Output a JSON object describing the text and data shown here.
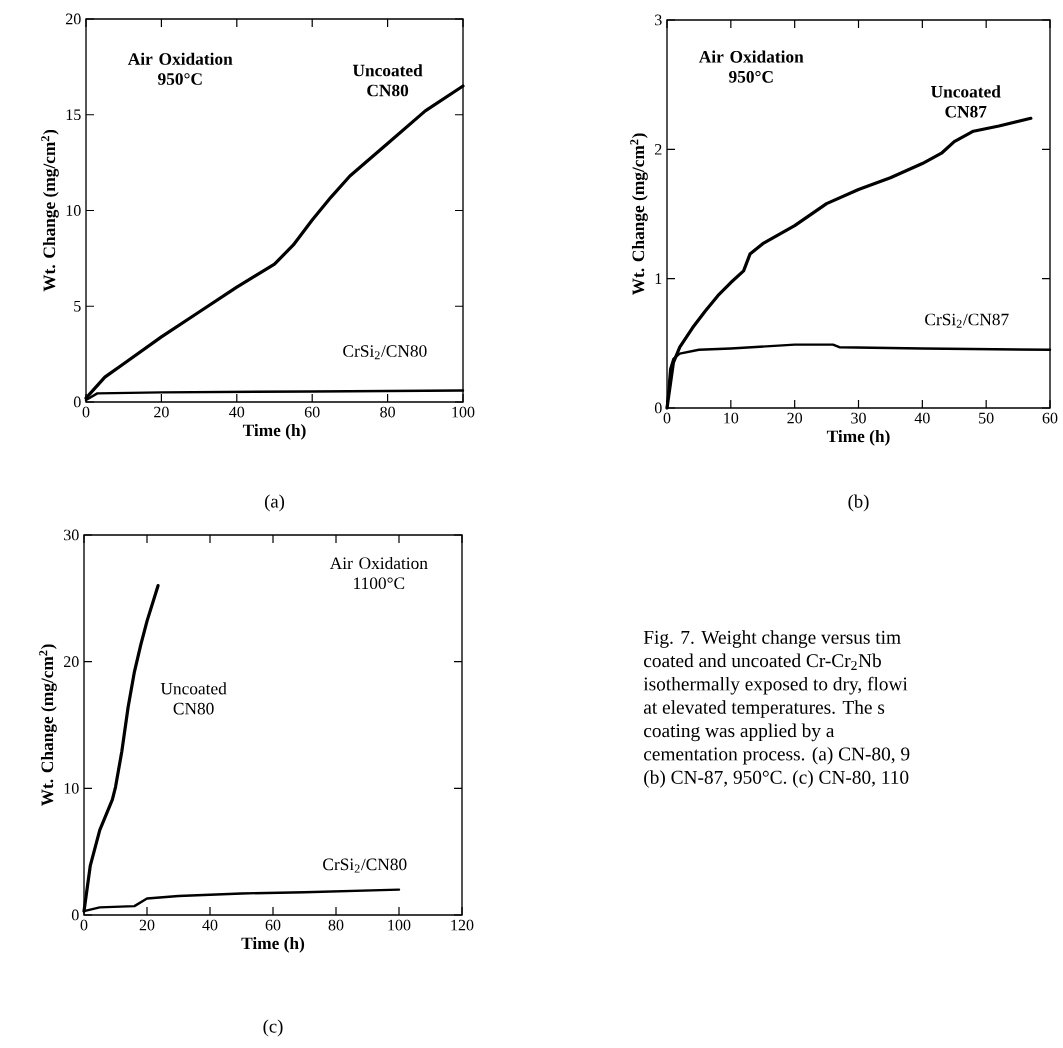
{
  "chart_data": [
    {
      "type": "line",
      "xlabel": "Time (h)",
      "ylabel": "Wt. Change (mg/cm$^{2}$)",
      "xlim": [
        0,
        100
      ],
      "ylim": [
        0,
        20
      ],
      "xticks": [
        0,
        20,
        40,
        60,
        80,
        100
      ],
      "yticks": [
        0,
        5,
        10,
        15,
        20
      ],
      "marker": "none",
      "series": [
        {
          "name": "Uncoated CN80",
          "color": "#000000",
          "x": [
            0,
            5,
            10,
            20,
            30,
            40,
            50,
            55,
            60,
            65,
            70,
            80,
            90,
            100
          ],
          "values": [
            0.2,
            1.3,
            2.0,
            3.4,
            4.7,
            6.0,
            7.2,
            8.2,
            9.5,
            10.7,
            11.8,
            13.5,
            15.2,
            16.5
          ]
        },
        {
          "name": "CrSi$_{2}$/CN80",
          "color": "#000000",
          "x": [
            0,
            3,
            20,
            60,
            100
          ],
          "values": [
            0.1,
            0.45,
            0.5,
            0.55,
            0.6
          ]
        }
      ],
      "annotations": [
        "Air Oxidation 950°C",
        "(a)"
      ]
    },
    {
      "type": "line",
      "xlabel": "Time (h)",
      "ylabel": "Wt. Change (mg/cm$^{2}$)",
      "xlim": [
        0,
        60
      ],
      "ylim": [
        0,
        3
      ],
      "xticks": [
        0,
        10,
        20,
        30,
        40,
        50,
        60
      ],
      "yticks": [
        0,
        1,
        2,
        3
      ],
      "marker": "none",
      "series": [
        {
          "name": "Uncoated CN87",
          "color": "#000000",
          "x": [
            0,
            1,
            2,
            4,
            6,
            8,
            10,
            12,
            13,
            15,
            20,
            25,
            30,
            35,
            40,
            43,
            45,
            48,
            52,
            57
          ],
          "values": [
            0,
            0.35,
            0.47,
            0.62,
            0.75,
            0.87,
            0.97,
            1.06,
            1.19,
            1.27,
            1.41,
            1.58,
            1.69,
            1.78,
            1.89,
            1.97,
            2.06,
            2.14,
            2.18,
            2.24
          ]
        },
        {
          "name": "CrSi$_{2}$/CN87",
          "color": "#000000",
          "x": [
            0,
            0.5,
            1,
            2,
            5,
            10,
            20,
            26,
            27,
            40,
            60
          ],
          "values": [
            0,
            0.3,
            0.38,
            0.42,
            0.45,
            0.46,
            0.49,
            0.49,
            0.47,
            0.46,
            0.45
          ]
        }
      ],
      "annotations": [
        "Air Oxidation 950°C",
        "(b)"
      ]
    },
    {
      "type": "line",
      "xlabel": "Time (h)",
      "ylabel": "Wt. Change (mg/cm$^{2}$)",
      "xlim": [
        0,
        120
      ],
      "ylim": [
        0,
        30
      ],
      "xticks": [
        0,
        20,
        40,
        60,
        80,
        100,
        120
      ],
      "yticks": [
        0,
        10,
        20,
        30
      ],
      "marker": "none",
      "series": [
        {
          "name": "Uncoated CN80",
          "color": "#000000",
          "x": [
            0,
            2,
            5,
            9,
            10,
            12,
            14,
            16,
            18,
            20,
            23.5
          ],
          "values": [
            0.3,
            3.9,
            6.7,
            9.1,
            10.1,
            12.9,
            16.4,
            19.2,
            21.3,
            23.2,
            26
          ]
        },
        {
          "name": "CrSi$_{2}$/CN80",
          "color": "#000000",
          "x": [
            0,
            5,
            16,
            18,
            20,
            30,
            50,
            70,
            100
          ],
          "values": [
            0.3,
            0.6,
            0.7,
            1.0,
            1.3,
            1.5,
            1.7,
            1.8,
            2.0
          ]
        }
      ],
      "annotations": [
        "Air Oxidation 1100°C",
        "(c)"
      ]
    },
    {
      "type": "other",
      "annotations": [
        "Fig. 7. Weight change versus tim",
        "coated and uncoated Cr-Cr$_{2}$Nb",
        "isothermally exposed to dry, flowi",
        "at elevated temperatures. The s",
        "coating was applied by a",
        "cementation process. (a) CN-80, 9",
        "(b) CN-87, 950°C. (c) CN-80, 110"
      ]
    }
  ]
}
